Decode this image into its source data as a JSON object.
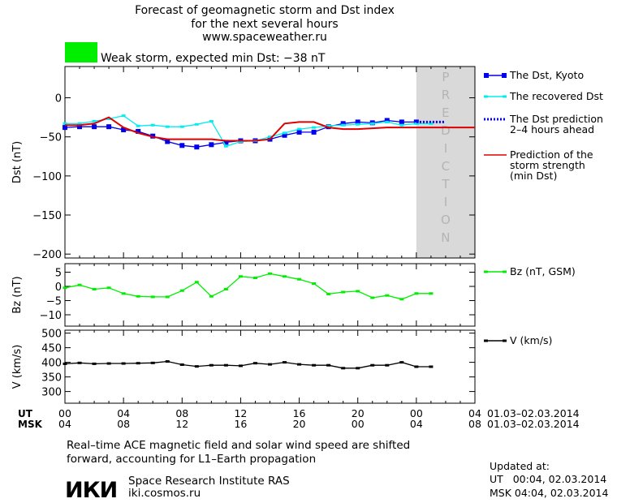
{
  "header": {
    "title_line1": "Forecast of geomagnetic storm and Dst index",
    "title_line2": "for the next several hours",
    "site_url": "www.spaceweather.ru",
    "storm_label": "Weak storm, expected min Dst: −38 nT",
    "storm_color": "#00ee00"
  },
  "footer": {
    "note_line1": "Real–time ACE magnetic field and solar wind speed are shifted",
    "note_line2": "forward, accounting for L1–Earth propagation",
    "logo_text": "ИКИ",
    "institute": "Space Research Institute RAS",
    "institute_url": "iki.cosmos.ru",
    "updated_label": "Updated at:",
    "updated_ut": "UT   00:04, 02.03.2014",
    "updated_msk": "MSK 04:04, 02.03.2014"
  },
  "chart_data": {
    "type": "line",
    "x_range": [
      0,
      28
    ],
    "prediction_band": {
      "from": 24,
      "to": 28,
      "letters": [
        "P",
        "R",
        "E",
        "D",
        "I",
        "C",
        "T",
        "I",
        "O",
        "N"
      ],
      "color": "#d9d9d9"
    },
    "time_axis": {
      "ut_label": "UT",
      "msk_label": "MSK",
      "ut_ticks": [
        "00",
        "04",
        "08",
        "12",
        "16",
        "20",
        "00",
        "04"
      ],
      "msk_ticks": [
        "04",
        "08",
        "12",
        "16",
        "20",
        "00",
        "04",
        "08"
      ],
      "tick_hours": [
        0,
        4,
        8,
        12,
        16,
        20,
        24,
        28
      ],
      "date_range": "01.03–02.03.2014"
    },
    "panels": [
      {
        "id": "dst",
        "ylabel": "Dst (nT)",
        "ylim": [
          -205,
          40
        ],
        "yticks": [
          0,
          -50,
          -100,
          -150,
          -200
        ],
        "ytick_labels": [
          "0",
          "−50",
          "−100",
          "−150",
          "−200"
        ],
        "series": [
          {
            "name": "The Dst, Kyoto",
            "color": "#0000ee",
            "marker": "square",
            "style": "solid",
            "x": [
              0,
              1,
              2,
              3,
              4,
              5,
              6,
              7,
              8,
              9,
              10,
              11,
              12,
              13,
              14,
              15,
              16,
              17,
              18,
              19,
              20,
              21,
              22,
              23,
              24
            ],
            "y": [
              -38,
              -37,
              -37,
              -37,
              -41,
              -43,
              -49,
              -56,
              -61,
              -63,
              -60,
              -57,
              -55,
              -55,
              -53,
              -48,
              -44,
              -44,
              -37,
              -33,
              -31,
              -32,
              -29,
              -31,
              -31
            ]
          },
          {
            "name": "The recovered Dst",
            "color": "#00eeee",
            "marker": "tick",
            "style": "solid",
            "x": [
              0,
              1,
              2,
              3,
              4,
              5,
              6,
              7,
              8,
              9,
              10,
              11,
              12,
              13,
              14,
              15,
              16,
              17,
              18,
              19,
              20,
              21,
              22,
              23,
              24,
              25
            ],
            "y": [
              -33,
              -33,
              -30,
              -27,
              -23,
              -36,
              -35,
              -37,
              -37,
              -34,
              -30,
              -62,
              -56,
              -55,
              -50,
              -45,
              -40,
              -38,
              -36,
              -35,
              -34,
              -33,
              -31,
              -35,
              -33,
              -33
            ]
          },
          {
            "name": "The Dst prediction",
            "name2": "2–4 hours ahead",
            "color": "#0000ee",
            "marker": "none",
            "style": "dotted",
            "x": [
              24,
              24.5,
              25,
              25.5,
              26
            ],
            "y": [
              -31,
              -31,
              -31,
              -31,
              -31
            ]
          },
          {
            "name": "Prediction of the",
            "name2": "storm strength",
            "name3": "(min Dst)",
            "color": "#dd0000",
            "marker": "none",
            "style": "solid",
            "x": [
              0,
              1,
              2,
              3,
              4,
              5,
              6,
              7,
              8,
              9,
              10,
              11,
              12,
              13,
              14,
              15,
              16,
              17,
              18,
              19,
              20,
              21,
              22,
              23,
              24,
              25,
              26,
              27,
              28
            ],
            "y": [
              -35,
              -35,
              -33,
              -25,
              -38,
              -45,
              -50,
              -53,
              -53,
              -53,
              -53,
              -55,
              -55,
              -55,
              -53,
              -33,
              -31,
              -31,
              -38,
              -40,
              -40,
              -39,
              -38,
              -38,
              -38,
              -38,
              -38,
              -38,
              -38
            ]
          }
        ]
      },
      {
        "id": "bz",
        "ylabel": "Bz (nT)",
        "ylim": [
          -14,
          8
        ],
        "yticks": [
          5,
          0,
          -5,
          -10
        ],
        "ytick_labels": [
          "5",
          "0",
          "−5",
          "−10"
        ],
        "series": [
          {
            "name": "Bz (nT, GSM)",
            "color": "#00ee00",
            "marker": "tick",
            "style": "solid",
            "x": [
              0,
              1,
              2,
              3,
              4,
              5,
              6,
              7,
              8,
              9,
              10,
              11,
              12,
              13,
              14,
              15,
              16,
              17,
              18,
              19,
              20,
              21,
              22,
              23,
              24,
              25
            ],
            "y": [
              -0.5,
              0.5,
              -1,
              -0.5,
              -2.5,
              -3.5,
              -3.7,
              -3.7,
              -1.5,
              1.5,
              -3.5,
              -1,
              3.5,
              3,
              4.5,
              3.5,
              2.5,
              1,
              -2.7,
              -2,
              -1.7,
              -4,
              -3.2,
              -4.5,
              -2.5,
              -2.5
            ]
          }
        ]
      },
      {
        "id": "v",
        "ylabel": "V (km/s)",
        "ylim": [
          260,
          510
        ],
        "yticks": [
          500,
          450,
          400,
          350,
          300
        ],
        "ytick_labels": [
          "500",
          "450",
          "400",
          "350",
          "300"
        ],
        "series": [
          {
            "name": "V (km/s)",
            "color": "#000000",
            "marker": "tick",
            "style": "solid",
            "x": [
              0,
              1,
              2,
              3,
              4,
              5,
              6,
              7,
              8,
              9,
              10,
              11,
              12,
              13,
              14,
              15,
              16,
              17,
              18,
              19,
              20,
              21,
              22,
              23,
              24,
              25
            ],
            "y": [
              395,
              398,
              395,
              396,
              396,
              397,
              398,
              403,
              392,
              386,
              390,
              390,
              388,
              397,
              393,
              400,
              393,
              390,
              390,
              380,
              380,
              390,
              390,
              400,
              385,
              385
            ]
          }
        ]
      }
    ]
  }
}
